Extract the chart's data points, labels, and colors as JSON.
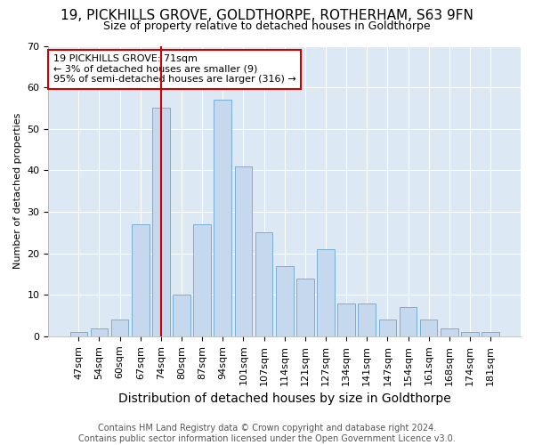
{
  "title1": "19, PICKHILLS GROVE, GOLDTHORPE, ROTHERHAM, S63 9FN",
  "title2": "Size of property relative to detached houses in Goldthorpe",
  "xlabel": "Distribution of detached houses by size in Goldthorpe",
  "ylabel": "Number of detached properties",
  "categories": [
    "47sqm",
    "54sqm",
    "60sqm",
    "67sqm",
    "74sqm",
    "80sqm",
    "87sqm",
    "94sqm",
    "101sqm",
    "107sqm",
    "114sqm",
    "121sqm",
    "127sqm",
    "134sqm",
    "141sqm",
    "147sqm",
    "154sqm",
    "161sqm",
    "168sqm",
    "174sqm",
    "181sqm"
  ],
  "values": [
    1,
    2,
    4,
    27,
    55,
    10,
    27,
    57,
    41,
    25,
    17,
    14,
    21,
    8,
    8,
    4,
    7,
    4,
    2,
    1,
    1
  ],
  "bar_color": "#c5d8ed",
  "bar_edge_color": "#7aaed4",
  "bar_width": 0.85,
  "ylim": [
    0,
    70
  ],
  "yticks": [
    0,
    10,
    20,
    30,
    40,
    50,
    60,
    70
  ],
  "vline_x": 4,
  "vline_color": "#cc0000",
  "annotation_text1": "19 PICKHILLS GROVE: 71sqm",
  "annotation_text2": "← 3% of detached houses are smaller (9)",
  "annotation_text3": "95% of semi-detached houses are larger (316) →",
  "box_color": "#cc0000",
  "footer1": "Contains HM Land Registry data © Crown copyright and database right 2024.",
  "footer2": "Contains public sector information licensed under the Open Government Licence v3.0.",
  "bg_color": "#ffffff",
  "plot_bg_color": "#dce9f5",
  "grid_color": "#ffffff",
  "title1_fontsize": 11,
  "title2_fontsize": 9,
  "xlabel_fontsize": 10,
  "ylabel_fontsize": 8,
  "tick_fontsize": 8,
  "footer_fontsize": 7,
  "ann_fontsize": 8
}
